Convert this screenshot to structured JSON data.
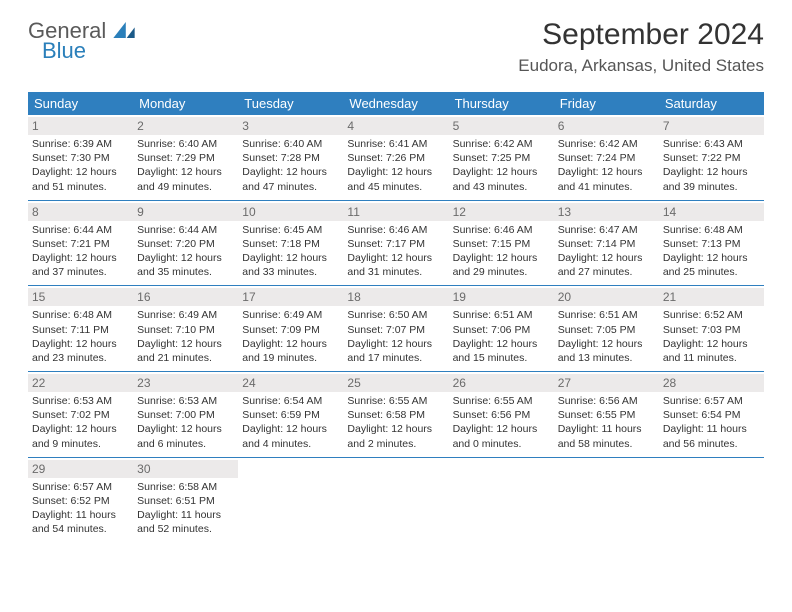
{
  "brand": {
    "general": "General",
    "blue": "Blue"
  },
  "title": "September 2024",
  "location": "Eudora, Arkansas, United States",
  "colors": {
    "header_bg": "#2f7fbf",
    "header_fg": "#ffffff",
    "daynum_bg": "#eceaea",
    "daynum_fg": "#6b6b6b",
    "row_border": "#2f7fbf",
    "text": "#333333"
  },
  "weekdays": [
    "Sunday",
    "Monday",
    "Tuesday",
    "Wednesday",
    "Thursday",
    "Friday",
    "Saturday"
  ],
  "days": [
    {
      "n": 1,
      "sr": "6:39 AM",
      "ss": "7:30 PM",
      "dl": "12 hours and 51 minutes."
    },
    {
      "n": 2,
      "sr": "6:40 AM",
      "ss": "7:29 PM",
      "dl": "12 hours and 49 minutes."
    },
    {
      "n": 3,
      "sr": "6:40 AM",
      "ss": "7:28 PM",
      "dl": "12 hours and 47 minutes."
    },
    {
      "n": 4,
      "sr": "6:41 AM",
      "ss": "7:26 PM",
      "dl": "12 hours and 45 minutes."
    },
    {
      "n": 5,
      "sr": "6:42 AM",
      "ss": "7:25 PM",
      "dl": "12 hours and 43 minutes."
    },
    {
      "n": 6,
      "sr": "6:42 AM",
      "ss": "7:24 PM",
      "dl": "12 hours and 41 minutes."
    },
    {
      "n": 7,
      "sr": "6:43 AM",
      "ss": "7:22 PM",
      "dl": "12 hours and 39 minutes."
    },
    {
      "n": 8,
      "sr": "6:44 AM",
      "ss": "7:21 PM",
      "dl": "12 hours and 37 minutes."
    },
    {
      "n": 9,
      "sr": "6:44 AM",
      "ss": "7:20 PM",
      "dl": "12 hours and 35 minutes."
    },
    {
      "n": 10,
      "sr": "6:45 AM",
      "ss": "7:18 PM",
      "dl": "12 hours and 33 minutes."
    },
    {
      "n": 11,
      "sr": "6:46 AM",
      "ss": "7:17 PM",
      "dl": "12 hours and 31 minutes."
    },
    {
      "n": 12,
      "sr": "6:46 AM",
      "ss": "7:15 PM",
      "dl": "12 hours and 29 minutes."
    },
    {
      "n": 13,
      "sr": "6:47 AM",
      "ss": "7:14 PM",
      "dl": "12 hours and 27 minutes."
    },
    {
      "n": 14,
      "sr": "6:48 AM",
      "ss": "7:13 PM",
      "dl": "12 hours and 25 minutes."
    },
    {
      "n": 15,
      "sr": "6:48 AM",
      "ss": "7:11 PM",
      "dl": "12 hours and 23 minutes."
    },
    {
      "n": 16,
      "sr": "6:49 AM",
      "ss": "7:10 PM",
      "dl": "12 hours and 21 minutes."
    },
    {
      "n": 17,
      "sr": "6:49 AM",
      "ss": "7:09 PM",
      "dl": "12 hours and 19 minutes."
    },
    {
      "n": 18,
      "sr": "6:50 AM",
      "ss": "7:07 PM",
      "dl": "12 hours and 17 minutes."
    },
    {
      "n": 19,
      "sr": "6:51 AM",
      "ss": "7:06 PM",
      "dl": "12 hours and 15 minutes."
    },
    {
      "n": 20,
      "sr": "6:51 AM",
      "ss": "7:05 PM",
      "dl": "12 hours and 13 minutes."
    },
    {
      "n": 21,
      "sr": "6:52 AM",
      "ss": "7:03 PM",
      "dl": "12 hours and 11 minutes."
    },
    {
      "n": 22,
      "sr": "6:53 AM",
      "ss": "7:02 PM",
      "dl": "12 hours and 9 minutes."
    },
    {
      "n": 23,
      "sr": "6:53 AM",
      "ss": "7:00 PM",
      "dl": "12 hours and 6 minutes."
    },
    {
      "n": 24,
      "sr": "6:54 AM",
      "ss": "6:59 PM",
      "dl": "12 hours and 4 minutes."
    },
    {
      "n": 25,
      "sr": "6:55 AM",
      "ss": "6:58 PM",
      "dl": "12 hours and 2 minutes."
    },
    {
      "n": 26,
      "sr": "6:55 AM",
      "ss": "6:56 PM",
      "dl": "12 hours and 0 minutes."
    },
    {
      "n": 27,
      "sr": "6:56 AM",
      "ss": "6:55 PM",
      "dl": "11 hours and 58 minutes."
    },
    {
      "n": 28,
      "sr": "6:57 AM",
      "ss": "6:54 PM",
      "dl": "11 hours and 56 minutes."
    },
    {
      "n": 29,
      "sr": "6:57 AM",
      "ss": "6:52 PM",
      "dl": "11 hours and 54 minutes."
    },
    {
      "n": 30,
      "sr": "6:58 AM",
      "ss": "6:51 PM",
      "dl": "11 hours and 52 minutes."
    }
  ],
  "labels": {
    "sunrise": "Sunrise:",
    "sunset": "Sunset:",
    "daylight": "Daylight:"
  }
}
